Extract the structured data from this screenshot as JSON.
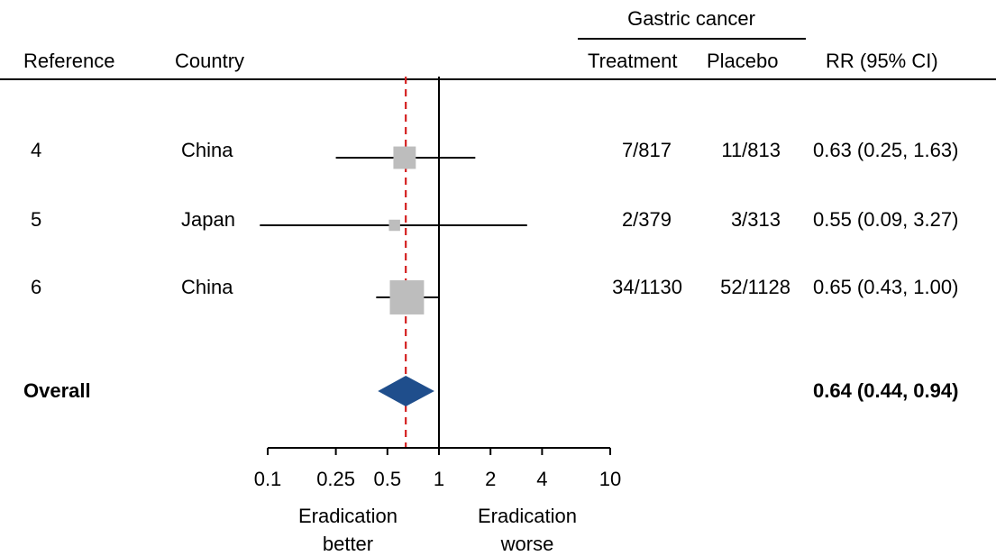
{
  "header": {
    "group_title": "Gastric cancer",
    "col_reference": "Reference",
    "col_country": "Country",
    "col_treatment": "Treatment",
    "col_placebo": "Placebo",
    "col_rr": "RR (95% CI)"
  },
  "rows": [
    {
      "reference": "4",
      "country": "China",
      "treatment": "7/817",
      "placebo": "11/813",
      "rr_text": "0.63 (0.25, 1.63)"
    },
    {
      "reference": "5",
      "country": "Japan",
      "treatment": "2/379",
      "placebo": "3/313",
      "rr_text": "0.55 (0.09, 3.27)"
    },
    {
      "reference": "6",
      "country": "China",
      "treatment": "34/1130",
      "placebo": "52/1128",
      "rr_text": "0.65 (0.43, 1.00)"
    }
  ],
  "overall": {
    "label": "Overall",
    "rr_text": "0.64 (0.44, 0.94)"
  },
  "footer": {
    "left_label_1": "Eradication",
    "left_label_2": "better",
    "right_label_1": "Eradication",
    "right_label_2": "worse"
  },
  "chart_data": {
    "type": "forest",
    "scale": "log",
    "xlim": [
      0.1,
      10
    ],
    "ticks": [
      0.1,
      0.25,
      0.5,
      1,
      2,
      4,
      10
    ],
    "tick_labels": [
      "0.1",
      "0.25",
      "0.5",
      "1",
      "2",
      "4",
      "10"
    ],
    "reference_line": 1,
    "pooled_line": 0.64,
    "studies": [
      {
        "label": "4",
        "rr": 0.63,
        "lo": 0.25,
        "hi": 1.63,
        "weight": 0.28
      },
      {
        "label": "5",
        "rr": 0.55,
        "lo": 0.09,
        "hi": 3.27,
        "weight": 0.07
      },
      {
        "label": "6",
        "rr": 0.65,
        "lo": 0.43,
        "hi": 1.0,
        "weight": 0.65
      }
    ],
    "overall": {
      "rr": 0.64,
      "lo": 0.44,
      "hi": 0.94
    },
    "colors": {
      "marker": "#bdbdbd",
      "diamond": "#1f4e8c",
      "pooled_line": "#d42020",
      "axis": "#000000"
    }
  }
}
